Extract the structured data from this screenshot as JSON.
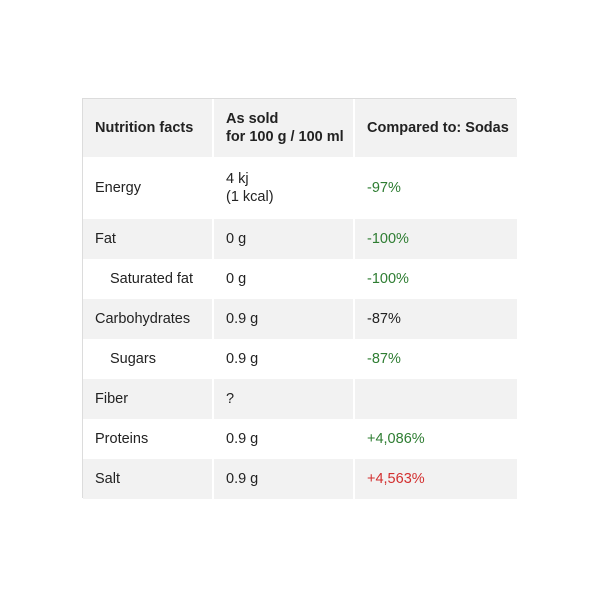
{
  "table": {
    "headers": {
      "nutrient": "Nutrition facts",
      "as_sold_line1": "As sold",
      "as_sold_line2": "for 100 g / 100 ml",
      "compared": "Compared to: Sodas"
    },
    "rows": [
      {
        "name": "Energy",
        "value_line1": "4 kj",
        "value_line2": "(1 kcal)",
        "compare": "-97%"
      },
      {
        "name": "Fat",
        "value": "0 g",
        "compare": "-100%"
      },
      {
        "name": "Saturated fat",
        "value": "0 g",
        "compare": "-100%"
      },
      {
        "name": "Carbohydrates",
        "value": "0.9 g",
        "compare": "-87%"
      },
      {
        "name": "Sugars",
        "value": "0.9 g",
        "compare": "-87%"
      },
      {
        "name": "Fiber",
        "value": "?",
        "compare": ""
      },
      {
        "name": "Proteins",
        "value": "0.9 g",
        "compare": "+4,086%"
      },
      {
        "name": "Salt",
        "value": "0.9 g",
        "compare": "+4,563%"
      }
    ]
  },
  "colors": {
    "good": "#2e7d32",
    "bad": "#d32f2f",
    "row_shade": "#f2f2f2",
    "border": "#dcdcdc"
  }
}
